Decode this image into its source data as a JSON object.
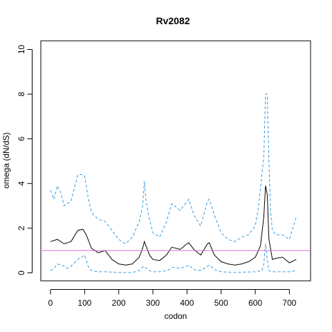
{
  "chart_data": {
    "type": "line",
    "title": "Rv2082",
    "xlabel": "codon",
    "ylabel": "omega (dN/dS)",
    "xlim": [
      0,
      720
    ],
    "ylim": [
      0,
      10
    ],
    "x_ticks": [
      0,
      100,
      200,
      300,
      400,
      500,
      600,
      700
    ],
    "y_ticks": [
      0,
      2,
      4,
      6,
      8,
      10
    ],
    "grid": false,
    "reference_line": {
      "y": 1,
      "color": "#DA70D6"
    },
    "colors": {
      "center": "#000000",
      "bounds": "#3399DD"
    },
    "series": [
      {
        "role": "estimate",
        "style": "solid",
        "x": [
          0,
          20,
          40,
          60,
          80,
          95,
          105,
          120,
          140,
          160,
          180,
          200,
          220,
          240,
          260,
          270,
          275,
          280,
          290,
          300,
          320,
          340,
          355,
          380,
          400,
          405,
          420,
          440,
          460,
          465,
          480,
          500,
          520,
          540,
          560,
          580,
          600,
          615,
          625,
          630,
          635,
          640,
          650,
          660,
          680,
          700,
          720
        ],
        "y": [
          1.4,
          1.5,
          1.3,
          1.4,
          1.9,
          1.95,
          1.7,
          1.1,
          0.9,
          1.0,
          0.6,
          0.4,
          0.35,
          0.4,
          0.7,
          1.1,
          1.4,
          1.2,
          0.8,
          0.6,
          0.55,
          0.8,
          1.15,
          1.05,
          1.3,
          1.35,
          1.05,
          0.8,
          1.3,
          1.35,
          0.8,
          0.5,
          0.4,
          0.35,
          0.4,
          0.5,
          0.7,
          1.2,
          2.5,
          3.9,
          3.5,
          1.5,
          0.6,
          0.65,
          0.7,
          0.45,
          0.6
        ]
      },
      {
        "role": "upper",
        "style": "dashed",
        "x": [
          0,
          10,
          20,
          30,
          40,
          60,
          80,
          90,
          100,
          110,
          120,
          140,
          160,
          180,
          200,
          220,
          240,
          260,
          270,
          275,
          280,
          290,
          300,
          320,
          340,
          355,
          380,
          400,
          405,
          420,
          440,
          460,
          465,
          480,
          500,
          520,
          540,
          560,
          580,
          600,
          610,
          620,
          625,
          630,
          635,
          640,
          645,
          650,
          660,
          680,
          700,
          720
        ],
        "y": [
          3.7,
          3.3,
          3.9,
          3.6,
          3.0,
          3.2,
          4.4,
          4.4,
          4.35,
          3.4,
          2.7,
          2.4,
          2.3,
          1.9,
          1.5,
          1.3,
          1.6,
          2.3,
          3.0,
          4.1,
          3.2,
          2.4,
          1.8,
          1.6,
          2.3,
          3.1,
          2.8,
          3.2,
          3.3,
          2.6,
          2.1,
          3.2,
          3.3,
          2.6,
          1.8,
          1.5,
          1.4,
          1.6,
          1.7,
          2.1,
          3.0,
          4.5,
          5.2,
          8.0,
          8.0,
          5.0,
          2.7,
          1.9,
          1.7,
          1.7,
          1.5,
          2.5
        ]
      },
      {
        "role": "lower",
        "style": "dashed",
        "x": [
          0,
          10,
          20,
          40,
          50,
          60,
          80,
          90,
          100,
          110,
          120,
          140,
          160,
          200,
          240,
          260,
          270,
          275,
          280,
          290,
          300,
          320,
          340,
          360,
          380,
          400,
          405,
          420,
          440,
          460,
          465,
          480,
          500,
          540,
          600,
          620,
          625,
          630,
          635,
          640,
          650,
          700,
          720
        ],
        "y": [
          0.1,
          0.2,
          0.4,
          0.3,
          0.2,
          0.3,
          0.6,
          0.7,
          0.8,
          0.3,
          0.1,
          0.05,
          0.05,
          0.02,
          0.02,
          0.1,
          0.25,
          0.3,
          0.2,
          0.1,
          0.05,
          0.05,
          0.1,
          0.25,
          0.2,
          0.3,
          0.35,
          0.15,
          0.1,
          0.3,
          0.35,
          0.15,
          0.05,
          0.02,
          0.05,
          0.1,
          0.4,
          1.3,
          0.6,
          0.1,
          0.05,
          0.05,
          0.1
        ]
      }
    ]
  }
}
